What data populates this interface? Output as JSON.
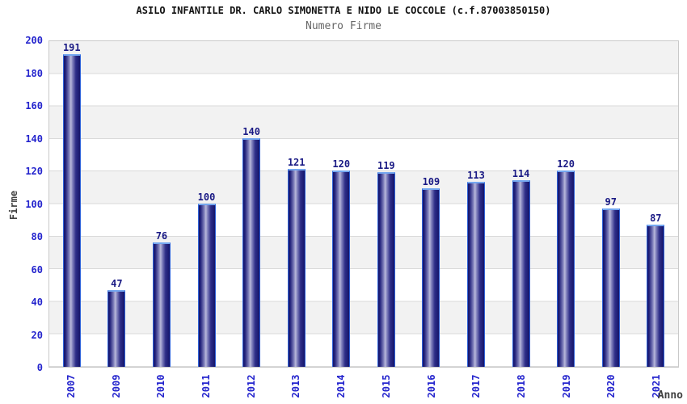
{
  "header": {
    "title": "ASILO INFANTILE DR. CARLO SIMONETTA E NIDO LE COCCOLE (c.f.87003850150)",
    "subtitle": "Numero Firme"
  },
  "chart_data": {
    "type": "bar",
    "title": "ASILO INFANTILE DR. CARLO SIMONETTA E NIDO LE COCCOLE (c.f.87003850150)",
    "subtitle": "Numero Firme",
    "categories": [
      "2007",
      "2009",
      "2010",
      "2011",
      "2012",
      "2013",
      "2014",
      "2015",
      "2016",
      "2017",
      "2018",
      "2019",
      "2020",
      "2021"
    ],
    "values": [
      191,
      47,
      76,
      100,
      140,
      121,
      120,
      119,
      109,
      113,
      114,
      120,
      97,
      87
    ],
    "xlabel": "Anno",
    "ylabel": "Firme",
    "ylim": [
      0,
      200
    ],
    "yticks": [
      0,
      20,
      40,
      60,
      80,
      100,
      120,
      140,
      160,
      180,
      200
    ],
    "grid": "alternating horizontal bands every 20 units, light gridlines",
    "legend_position": "none",
    "colors": {
      "bar_edge": "#2f62d8",
      "bar_dark": "#15156b",
      "bar_light": "#b9b9da",
      "value_label": "#191984",
      "tick_label": "#2424cd",
      "axis_title": "#404040",
      "band_gray": "#f2f2f2",
      "band_white": "#ffffff",
      "plot_border": "#c9c9c9",
      "title_color": "#111111",
      "subtitle_color": "#666666"
    }
  }
}
